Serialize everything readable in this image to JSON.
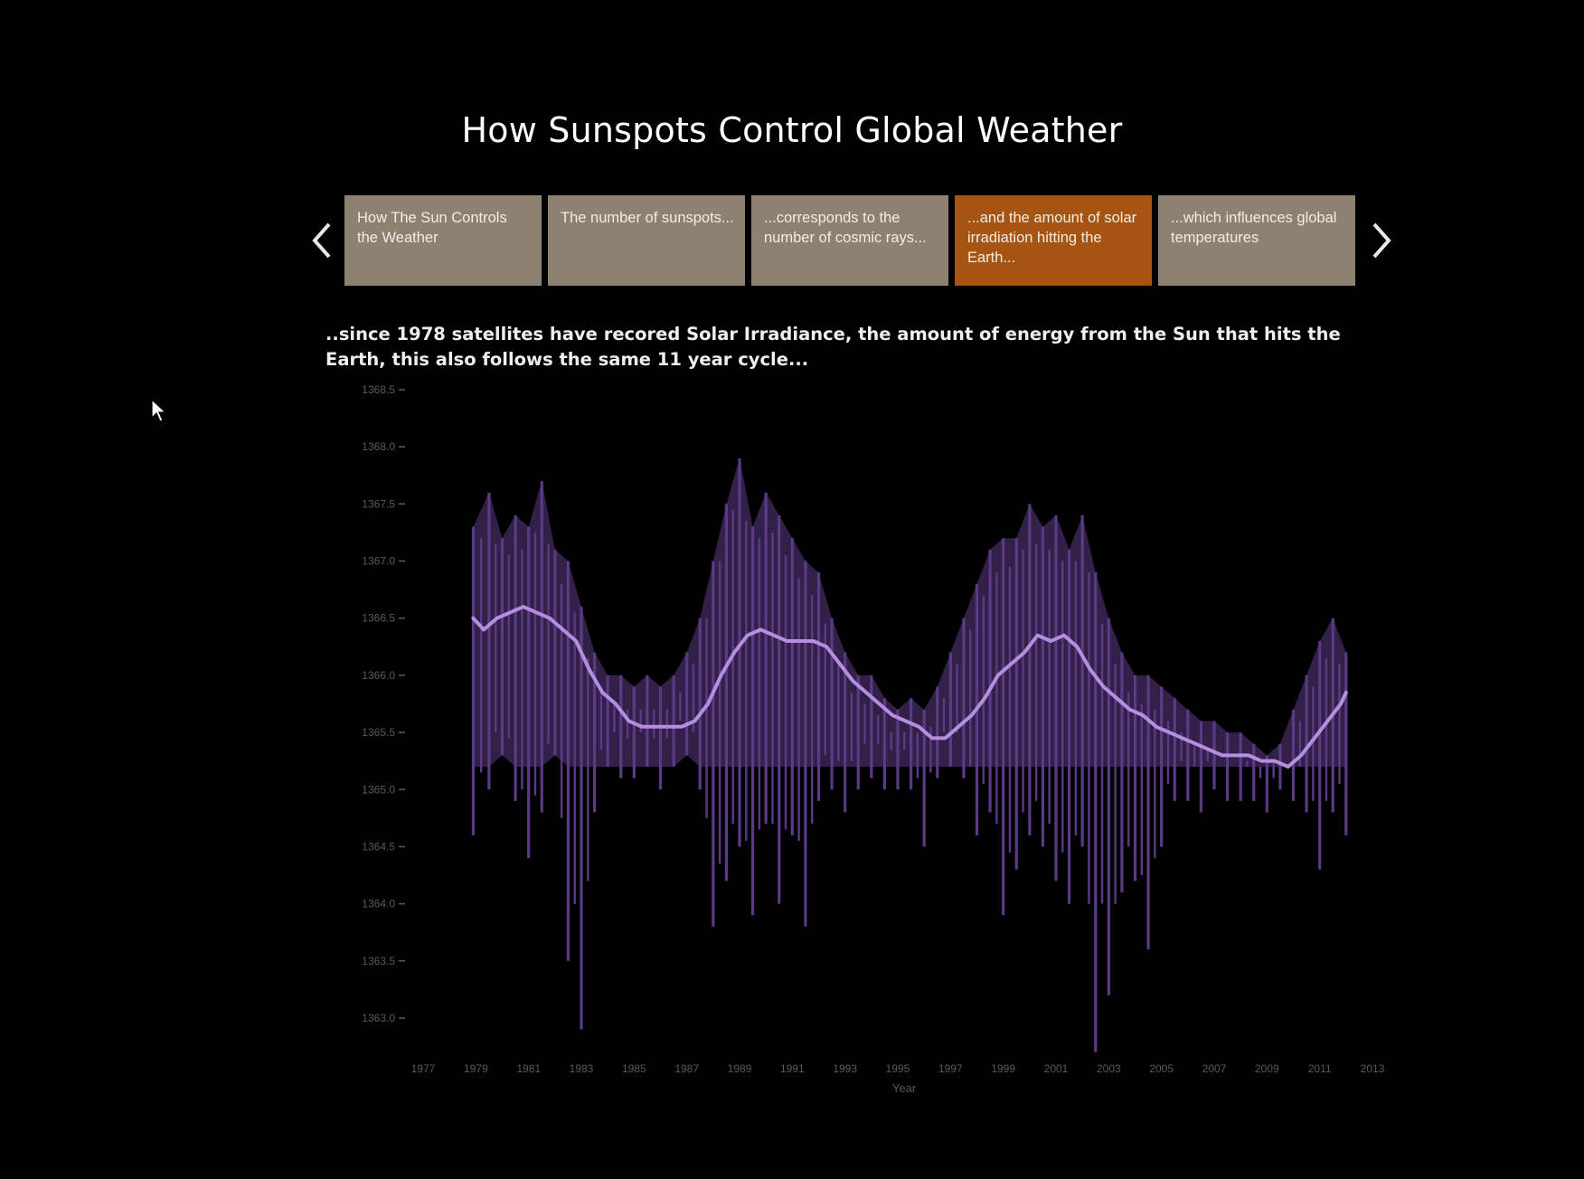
{
  "page": {
    "title": "How Sunspots Control Global Weather",
    "caption": "..since 1978 satellites have recored Solar Irradiance, the amount of energy from the Sun that hits the Earth, this also follows the same 11 year cycle..."
  },
  "navigation": {
    "prev_icon": "chevron-left-icon",
    "next_icon": "chevron-right-icon",
    "tabs": [
      {
        "label": "How The Sun Controls the Weather",
        "active": false
      },
      {
        "label": "The number of sunspots...",
        "active": false
      },
      {
        "label": "...corresponds to the number of cosmic rays...",
        "active": false
      },
      {
        "label": "...and the amount of solar irradiation hitting the Earth...",
        "active": true
      },
      {
        "label": "...which influences global temperatures",
        "active": false
      }
    ]
  },
  "colors": {
    "background": "#000000",
    "tab_default": "#8d8172",
    "tab_active": "#a55411",
    "series_raw": "#5b3a85",
    "series_smooth": "#b58ee0",
    "axis_text": "#5a5a5a"
  },
  "chart_data": {
    "type": "line",
    "title": "",
    "xlabel": "Year",
    "ylabel": "",
    "xlim": [
      1977,
      2013
    ],
    "ylim": [
      1363.0,
      1368.5
    ],
    "x_ticks": [
      "1977",
      "1979",
      "1981",
      "1983",
      "1985",
      "1987",
      "1989",
      "1991",
      "1993",
      "1995",
      "1997",
      "1999",
      "2001",
      "2003",
      "2005",
      "2007",
      "2009",
      "2011",
      "2013"
    ],
    "y_ticks": [
      "1368.5",
      "1368.0",
      "1367.5",
      "1367.0",
      "1366.5",
      "1366.0",
      "1365.5",
      "1365.0",
      "1364.5",
      "1364.0",
      "1363.5",
      "1363.0"
    ],
    "grid": false,
    "series": [
      {
        "style": "daily values (noisy band)",
        "x": [
          1978.9,
          1979.5,
          1980.0,
          1980.5,
          1981.0,
          1981.5,
          1982.0,
          1982.5,
          1983.0,
          1983.5,
          1984.0,
          1984.5,
          1985.0,
          1985.5,
          1986.0,
          1986.5,
          1987.0,
          1987.5,
          1988.0,
          1988.5,
          1989.0,
          1989.5,
          1990.0,
          1990.5,
          1991.0,
          1991.5,
          1992.0,
          1992.5,
          1993.0,
          1993.5,
          1994.0,
          1994.5,
          1995.0,
          1995.5,
          1996.0,
          1996.5,
          1997.0,
          1997.5,
          1998.0,
          1998.5,
          1999.0,
          1999.5,
          2000.0,
          2000.5,
          2001.0,
          2001.5,
          2002.0,
          2002.5,
          2003.0,
          2003.5,
          2004.0,
          2004.5,
          2005.0,
          2005.5,
          2006.0,
          2006.5,
          2007.0,
          2007.5,
          2008.0,
          2008.5,
          2009.0,
          2009.5,
          2010.0,
          2010.5,
          2011.0,
          2011.5,
          2012.0
        ],
        "upper": [
          1367.3,
          1367.6,
          1367.2,
          1367.4,
          1367.3,
          1367.7,
          1367.1,
          1367.0,
          1366.6,
          1366.2,
          1366.0,
          1366.0,
          1365.9,
          1366.0,
          1365.9,
          1366.0,
          1366.2,
          1366.5,
          1367.0,
          1367.5,
          1367.9,
          1367.3,
          1367.6,
          1367.4,
          1367.2,
          1367.0,
          1366.9,
          1366.5,
          1366.2,
          1366.0,
          1366.0,
          1365.8,
          1365.7,
          1365.8,
          1365.7,
          1365.9,
          1366.2,
          1366.5,
          1366.8,
          1367.1,
          1367.2,
          1367.2,
          1367.5,
          1367.3,
          1367.4,
          1367.1,
          1367.4,
          1366.9,
          1366.5,
          1366.2,
          1366.0,
          1366.0,
          1365.9,
          1365.8,
          1365.7,
          1365.6,
          1365.6,
          1365.5,
          1365.5,
          1365.4,
          1365.3,
          1365.4,
          1365.7,
          1366.0,
          1366.3,
          1366.5,
          1366.2
        ],
        "lower": [
          1364.6,
          1365.0,
          1365.3,
          1364.9,
          1364.4,
          1364.8,
          1365.3,
          1363.5,
          1362.9,
          1364.8,
          1365.2,
          1365.1,
          1365.1,
          1365.2,
          1365.0,
          1365.2,
          1365.3,
          1365.0,
          1363.8,
          1364.2,
          1364.5,
          1363.9,
          1364.7,
          1364.0,
          1364.6,
          1363.8,
          1364.9,
          1365.0,
          1364.8,
          1365.0,
          1365.1,
          1365.0,
          1365.0,
          1365.0,
          1364.5,
          1365.1,
          1365.2,
          1365.1,
          1364.6,
          1364.8,
          1363.9,
          1364.3,
          1364.6,
          1364.5,
          1364.2,
          1364.0,
          1364.5,
          1362.7,
          1363.2,
          1364.1,
          1364.2,
          1363.6,
          1364.5,
          1364.9,
          1364.9,
          1364.8,
          1365.0,
          1364.9,
          1364.9,
          1364.9,
          1364.8,
          1365.0,
          1364.9,
          1364.8,
          1364.3,
          1364.8,
          1364.6
        ]
      },
      {
        "style": "smoothed average",
        "x": [
          1978.9,
          1979.3,
          1979.8,
          1980.3,
          1980.8,
          1981.3,
          1981.8,
          1982.3,
          1982.8,
          1983.3,
          1983.8,
          1984.3,
          1984.8,
          1985.3,
          1985.8,
          1986.3,
          1986.8,
          1987.3,
          1987.8,
          1988.3,
          1988.8,
          1989.3,
          1989.8,
          1990.3,
          1990.8,
          1991.3,
          1991.8,
          1992.3,
          1992.8,
          1993.3,
          1993.8,
          1994.3,
          1994.8,
          1995.3,
          1995.8,
          1996.3,
          1996.8,
          1997.3,
          1997.8,
          1998.3,
          1998.8,
          1999.3,
          1999.8,
          2000.3,
          2000.8,
          2001.3,
          2001.8,
          2002.3,
          2002.8,
          2003.3,
          2003.8,
          2004.3,
          2004.8,
          2005.3,
          2005.8,
          2006.3,
          2006.8,
          2007.3,
          2007.8,
          2008.3,
          2008.8,
          2009.3,
          2009.8,
          2010.3,
          2010.8,
          2011.3,
          2011.8,
          2012.0
        ],
        "y": [
          1366.5,
          1366.4,
          1366.5,
          1366.55,
          1366.6,
          1366.55,
          1366.5,
          1366.4,
          1366.3,
          1366.05,
          1365.85,
          1365.75,
          1365.6,
          1365.55,
          1365.55,
          1365.55,
          1365.55,
          1365.6,
          1365.75,
          1366.0,
          1366.2,
          1366.35,
          1366.4,
          1366.35,
          1366.3,
          1366.3,
          1366.3,
          1366.25,
          1366.1,
          1365.95,
          1365.85,
          1365.75,
          1365.65,
          1365.6,
          1365.55,
          1365.45,
          1365.45,
          1365.55,
          1365.65,
          1365.8,
          1366.0,
          1366.1,
          1366.2,
          1366.35,
          1366.3,
          1366.35,
          1366.25,
          1366.05,
          1365.9,
          1365.8,
          1365.7,
          1365.65,
          1365.55,
          1365.5,
          1365.45,
          1365.4,
          1365.35,
          1365.3,
          1365.3,
          1365.3,
          1365.25,
          1365.25,
          1365.2,
          1365.3,
          1365.45,
          1365.6,
          1365.75,
          1365.85
        ]
      }
    ]
  }
}
